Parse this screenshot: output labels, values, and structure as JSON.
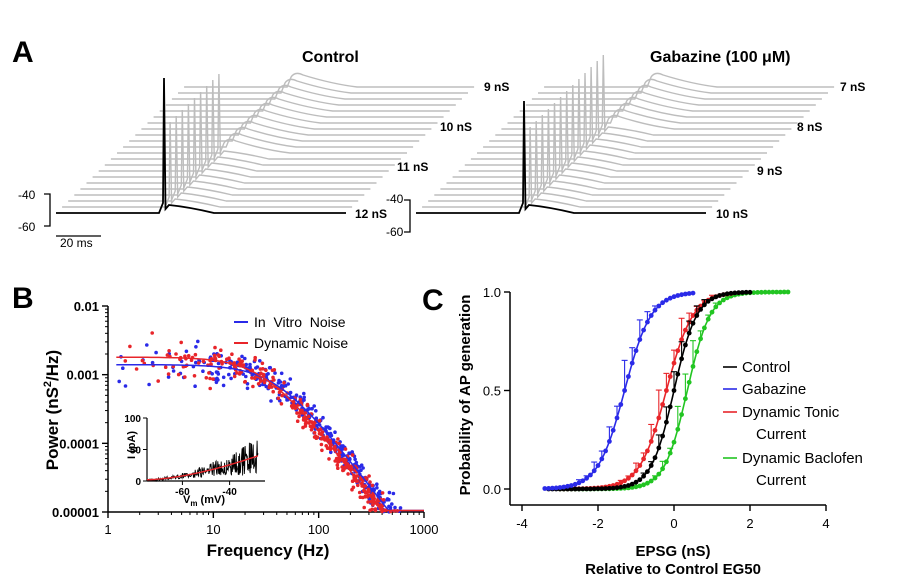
{
  "chart_data": [
    {
      "panel": "A",
      "type": "line",
      "stacks": [
        {
          "title": "Control",
          "conductance_labels": [
            "9 nS",
            "10 nS",
            "11 nS",
            "12 nS"
          ],
          "trace_count": 22,
          "spike_trace_count": 9
        },
        {
          "title": "Gabazine (100 μM)",
          "conductance_labels": [
            "7 nS",
            "8 nS",
            "9 nS",
            "10 nS"
          ],
          "trace_count": 22,
          "spike_trace_count": 13
        }
      ],
      "voltage_scale_labels": [
        "-40",
        "-60"
      ],
      "time_scale_label": "20 ms",
      "colors": {
        "front_trace": "#000000",
        "back_traces": "#bdbdbd"
      }
    },
    {
      "panel": "B",
      "type": "scatter",
      "xlabel": "Frequency (Hz)",
      "ylabel_main": "Power (nS",
      "ylabel_sup": "2",
      "ylabel_tail": "/Hz)",
      "x_scale": "log",
      "y_scale": "log",
      "xlim": [
        1,
        1000
      ],
      "ylim": [
        1e-05,
        0.01
      ],
      "x_ticks": [
        1,
        10,
        100,
        1000
      ],
      "x_tick_labels": [
        "1",
        "10",
        "100",
        "1000"
      ],
      "y_ticks": [
        1e-05,
        0.0001,
        0.001,
        0.01
      ],
      "y_tick_labels": [
        "0.00001",
        "0.0001",
        "0.001",
        "0.01"
      ],
      "series": [
        {
          "name": "In  Vitro  Noise",
          "color": "#2a2ae8",
          "plateau": 0.0014,
          "corner_hz": 40
        },
        {
          "name": "Dynamic Noise",
          "color": "#e8252a",
          "plateau": 0.0018,
          "corner_hz": 30
        }
      ],
      "legend_position": "top-right",
      "inset": {
        "xlabel_main": "V",
        "xlabel_sub": "m",
        "xlabel_tail": " (mV)",
        "ylabel": "I (pA)",
        "xlim": [
          -75,
          -25
        ],
        "ylim": [
          0,
          100
        ],
        "x_ticks": [
          -60,
          -40
        ],
        "x_tick_labels": [
          "-60",
          "-40"
        ],
        "y_ticks": [
          0,
          50,
          100
        ],
        "y_tick_labels": [
          "0",
          "50",
          "100"
        ]
      }
    },
    {
      "panel": "C",
      "type": "line",
      "xlabel_line1": "EPSG (nS)",
      "xlabel_line2": "Relative to Control EG50",
      "ylabel": "Probability of AP generation",
      "xlim": [
        -4,
        4
      ],
      "ylim": [
        0,
        1
      ],
      "x_ticks": [
        -4,
        -2,
        0,
        2,
        4
      ],
      "x_tick_labels": [
        "-4",
        "-2",
        "0",
        "2",
        "4"
      ],
      "y_ticks": [
        0,
        0.5,
        1
      ],
      "y_tick_labels": [
        "0.0",
        "0.5",
        "1.0"
      ],
      "legend_position": "right",
      "series": [
        {
          "name": "Control",
          "color": "#000000",
          "ec50": 0.0,
          "slope": 0.3,
          "x_start": -3.3,
          "x_end": 2.0
        },
        {
          "name": "Gabazine",
          "color": "#2a2ae8",
          "ec50": -1.3,
          "slope": 0.35,
          "x_start": -3.4,
          "x_end": 0.5
        },
        {
          "name": "Dynamic Tonic\nCurrent",
          "color": "#e8252a",
          "ec50": -0.2,
          "slope": 0.35,
          "x_start": -3.0,
          "x_end": 1.5
        },
        {
          "name": "Dynamic Baclofen\nCurrent",
          "color": "#22c522",
          "ec50": 0.35,
          "slope": 0.3,
          "x_start": -3.0,
          "x_end": 3.0
        }
      ]
    }
  ],
  "panel_labels": [
    "A",
    "B",
    "C"
  ]
}
